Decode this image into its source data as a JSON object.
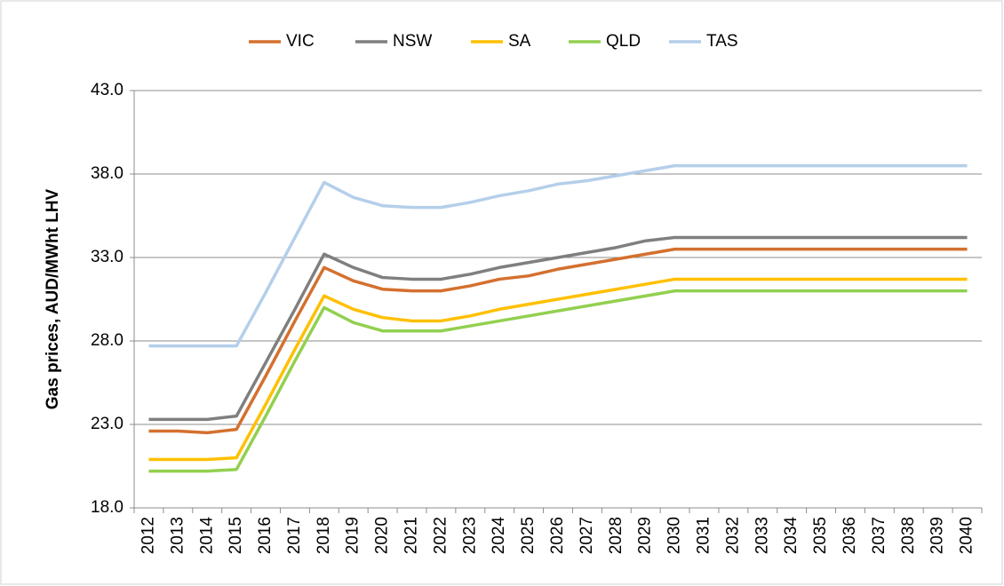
{
  "chart_data": {
    "type": "line",
    "y_label": "Gas prices, AUD/MWht LHV",
    "categories": [
      "2012",
      "2013",
      "2014",
      "2015",
      "2016",
      "2017",
      "2018",
      "2019",
      "2020",
      "2021",
      "2022",
      "2023",
      "2024",
      "2025",
      "2026",
      "2027",
      "2028",
      "2029",
      "2030",
      "2031",
      "2032",
      "2033",
      "2034",
      "2035",
      "2036",
      "2037",
      "2038",
      "2039",
      "2040"
    ],
    "series": [
      {
        "name": "VIC",
        "color": "#d4702f",
        "values": [
          22.6,
          22.6,
          22.5,
          22.7,
          25.9,
          29.2,
          32.4,
          31.6,
          31.1,
          31.0,
          31.0,
          31.3,
          31.7,
          31.9,
          32.3,
          32.6,
          32.9,
          33.2,
          33.5,
          33.5,
          33.5,
          33.5,
          33.5,
          33.5,
          33.5,
          33.5,
          33.5,
          33.5,
          33.5
        ]
      },
      {
        "name": "NSW",
        "color": "#7f7f7f",
        "values": [
          23.3,
          23.3,
          23.3,
          23.5,
          26.7,
          29.9,
          33.2,
          32.4,
          31.8,
          31.7,
          31.7,
          32.0,
          32.4,
          32.7,
          33.0,
          33.3,
          33.6,
          34.0,
          34.2,
          34.2,
          34.2,
          34.2,
          34.2,
          34.2,
          34.2,
          34.2,
          34.2,
          34.2,
          34.2
        ]
      },
      {
        "name": "SA",
        "color": "#ffc000",
        "values": [
          20.9,
          20.9,
          20.9,
          21.0,
          24.2,
          27.5,
          30.7,
          29.9,
          29.4,
          29.2,
          29.2,
          29.5,
          29.9,
          30.2,
          30.5,
          30.8,
          31.1,
          31.4,
          31.7,
          31.7,
          31.7,
          31.7,
          31.7,
          31.7,
          31.7,
          31.7,
          31.7,
          31.7,
          31.7
        ]
      },
      {
        "name": "QLD",
        "color": "#92d050",
        "values": [
          20.2,
          20.2,
          20.2,
          20.3,
          23.5,
          26.8,
          30.0,
          29.1,
          28.6,
          28.6,
          28.6,
          28.9,
          29.2,
          29.5,
          29.8,
          30.1,
          30.4,
          30.7,
          31.0,
          31.0,
          31.0,
          31.0,
          31.0,
          31.0,
          31.0,
          31.0,
          31.0,
          31.0,
          31.0
        ]
      },
      {
        "name": "TAS",
        "color": "#b4cfea",
        "values": [
          27.7,
          27.7,
          27.7,
          27.7,
          30.9,
          34.2,
          37.5,
          36.6,
          36.1,
          36.0,
          36.0,
          36.3,
          36.7,
          37.0,
          37.4,
          37.6,
          37.9,
          38.2,
          38.5,
          38.5,
          38.5,
          38.5,
          38.5,
          38.5,
          38.5,
          38.5,
          38.5,
          38.5,
          38.5
        ]
      }
    ],
    "ylim": [
      18,
      43
    ],
    "yticks": [
      {
        "value": 18,
        "label": "18.0"
      },
      {
        "value": 23,
        "label": "23.0"
      },
      {
        "value": 28,
        "label": "28.0"
      },
      {
        "value": 33,
        "label": "33.0"
      },
      {
        "value": 38,
        "label": "38.0"
      },
      {
        "value": 43,
        "label": "43.0"
      }
    ],
    "grid": true,
    "legend": "top"
  }
}
